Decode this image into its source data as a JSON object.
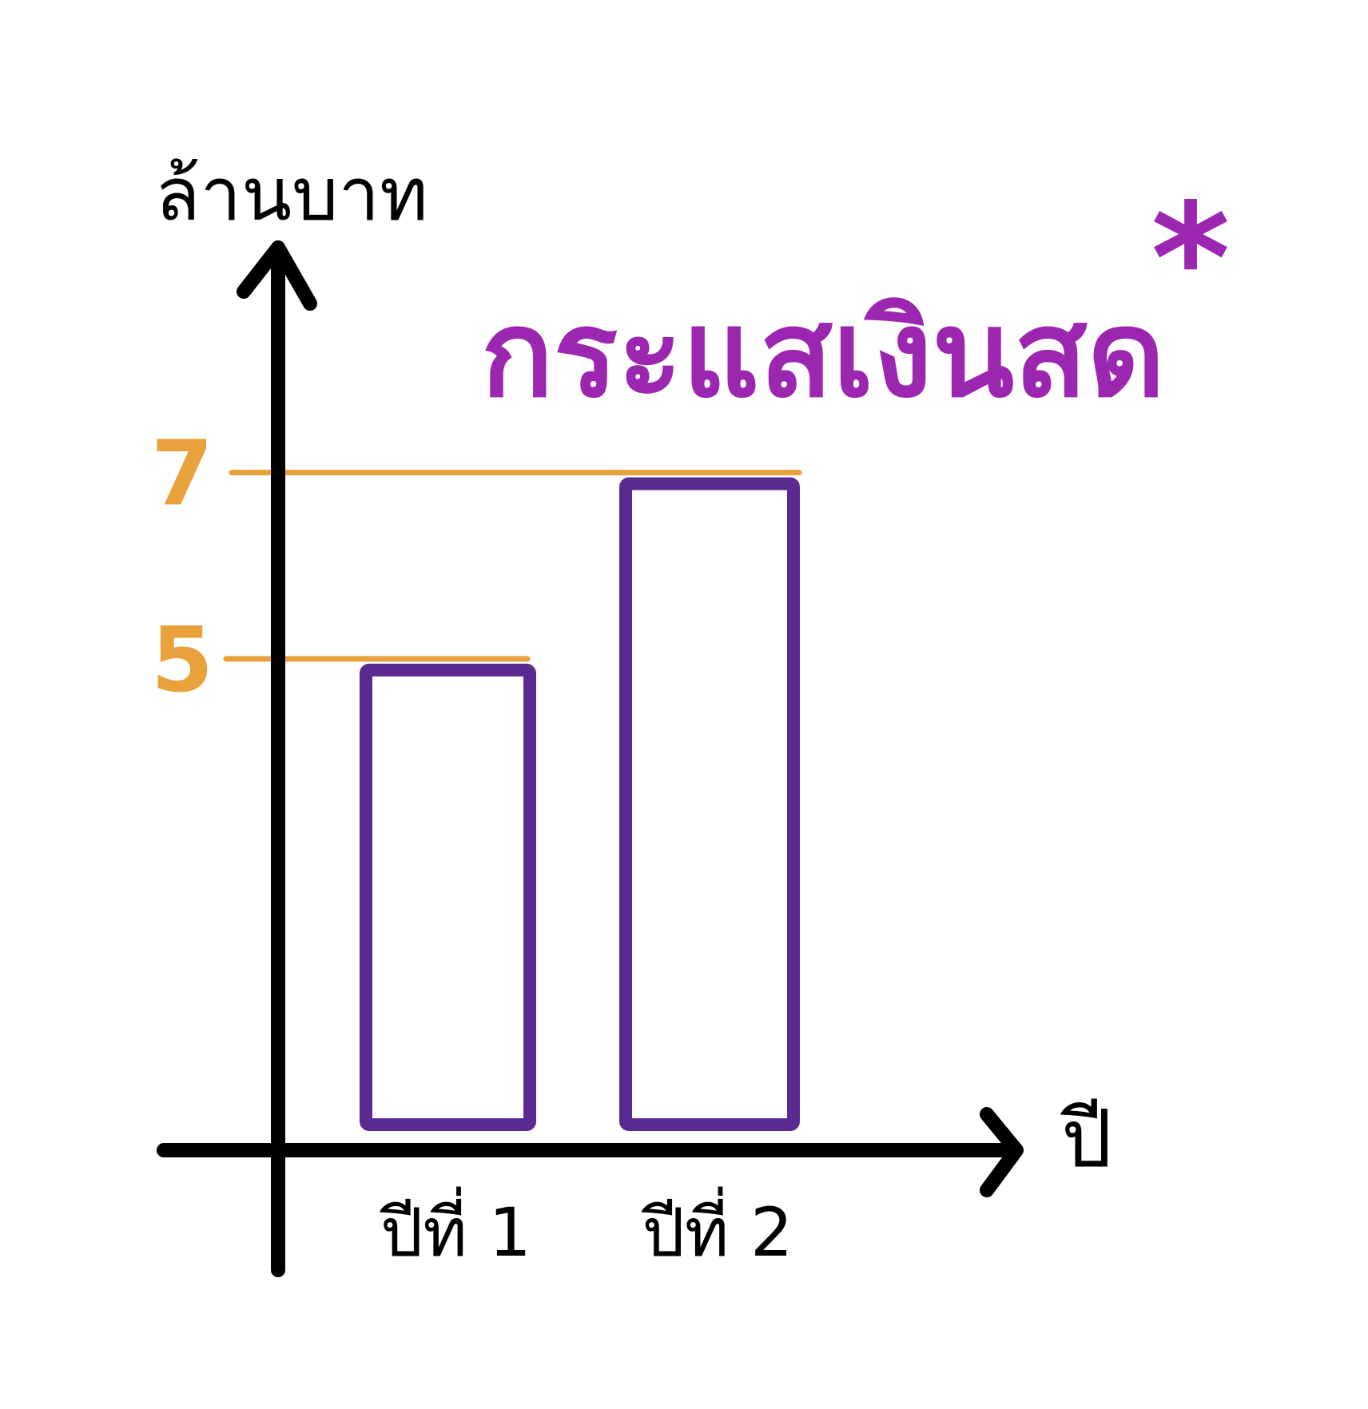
{
  "chart_data": {
    "type": "bar",
    "title": "กระแสเงินสด",
    "title_mark": "*",
    "ylabel": "ล้านบาท",
    "xlabel": "ปี",
    "categories": [
      "ปีที่ 1",
      "ปีที่ 2"
    ],
    "values": [
      5,
      7
    ],
    "reference_lines": [
      {
        "label": "7",
        "value": 7
      },
      {
        "label": "5",
        "value": 5
      }
    ],
    "ylim": [
      0,
      9.5
    ],
    "grid": false,
    "legend": "none",
    "colors": {
      "axis": "#000000",
      "bar_outline": "#5b2a91",
      "reference": "#e9a23b",
      "title": "#9b27b0"
    }
  }
}
